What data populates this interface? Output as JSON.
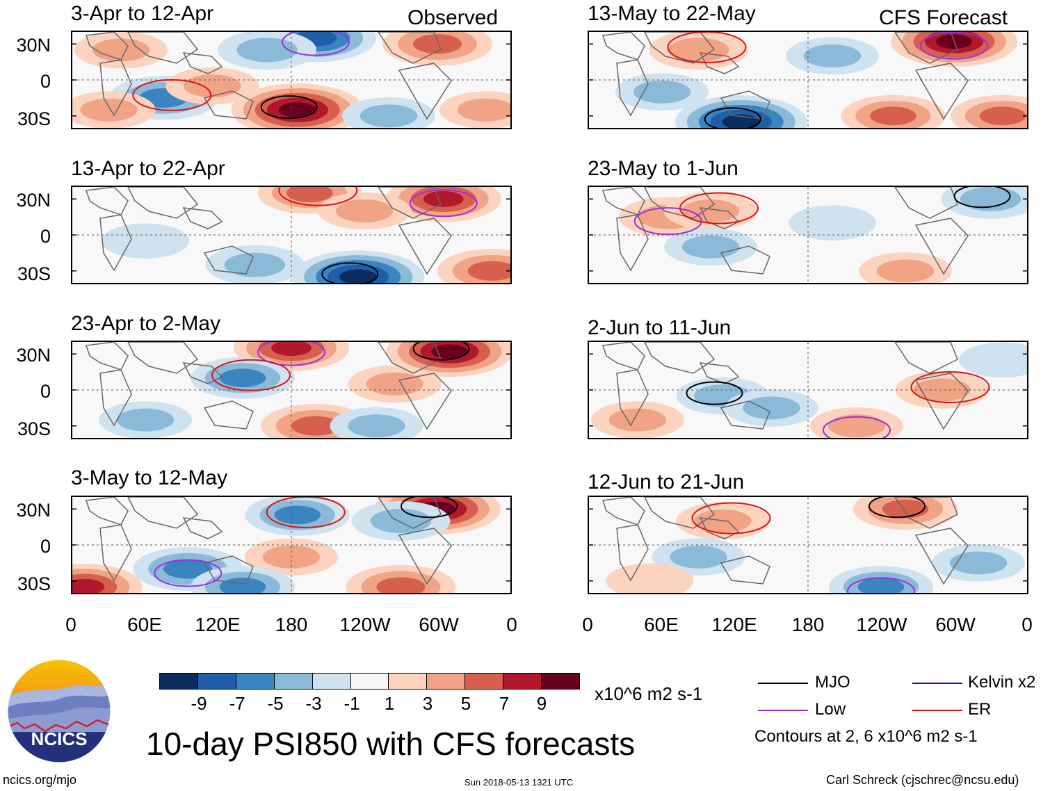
{
  "figure_title": "10-day PSI850 with CFS forecasts",
  "left_column_label": "Observed",
  "right_column_label": "CFS Forecast",
  "logo_text": "NCICS",
  "footer": {
    "left": "ncics.org/mjo",
    "center": "Sun 2018-05-13 1321 UTC",
    "right": "Carl Schreck (cjschrec@ncsu.edu)"
  },
  "colorbar": {
    "unit_label": "x10^6 m2 s-1",
    "tick_labels": [
      "-9",
      "-7",
      "-5",
      "-3",
      "-1",
      "1",
      "3",
      "5",
      "7",
      "9"
    ],
    "colors": [
      "#0b2c5e",
      "#1f5ea8",
      "#3a85c0",
      "#8bbad9",
      "#cfe2f0",
      "#f7f7f7",
      "#fbd3bf",
      "#f1a385",
      "#d6604d",
      "#b2182b",
      "#67001f"
    ]
  },
  "legend": {
    "items": [
      {
        "label": "MJO",
        "color": "#000000"
      },
      {
        "label": "Kelvin x2",
        "color": "#1010d0"
      },
      {
        "label": "Low",
        "color": "#9a30e0"
      },
      {
        "label": "ER",
        "color": "#e01010"
      }
    ],
    "note": "Contours at 2, 6 x10^6 m2 s-1"
  },
  "chart_data": {
    "type": "heatmap",
    "variable": "10-day PSI850 anomaly",
    "units": "x10^6 m2 s-1",
    "y_ticks": [
      "30N",
      "0",
      "30S"
    ],
    "x_ticks": [
      "0",
      "60E",
      "120E",
      "180",
      "120W",
      "60W",
      "0"
    ],
    "x_range_deg": [
      0,
      360
    ],
    "y_range_deg": [
      -40,
      40
    ],
    "contour_levels": [
      2,
      6
    ],
    "panels": [
      {
        "period": "3-Apr to 12-Apr",
        "source": "Observed",
        "blobs": [
          {
            "lon": 185,
            "lat": -25,
            "v": 10
          },
          {
            "lon": 200,
            "lat": 35,
            "v": -8
          },
          {
            "lon": 75,
            "lat": -15,
            "v": -6
          },
          {
            "lon": 115,
            "lat": -5,
            "v": 3
          },
          {
            "lon": 300,
            "lat": 30,
            "v": 6
          },
          {
            "lon": 160,
            "lat": 25,
            "v": -4
          },
          {
            "lon": 30,
            "lat": -25,
            "v": 3
          },
          {
            "lon": 260,
            "lat": -30,
            "v": -3
          },
          {
            "lon": 340,
            "lat": -25,
            "v": 3
          },
          {
            "lon": 40,
            "lat": 25,
            "v": 3
          }
        ]
      },
      {
        "period": "13-Apr to 22-Apr",
        "source": "Observed",
        "blobs": [
          {
            "lon": 235,
            "lat": -35,
            "v": -10
          },
          {
            "lon": 305,
            "lat": 30,
            "v": 7
          },
          {
            "lon": 195,
            "lat": 35,
            "v": 5
          },
          {
            "lon": 150,
            "lat": -25,
            "v": -4
          },
          {
            "lon": 345,
            "lat": -30,
            "v": 6
          },
          {
            "lon": 60,
            "lat": -5,
            "v": -2
          },
          {
            "lon": 240,
            "lat": 20,
            "v": 3
          }
        ]
      },
      {
        "period": "23-Apr to 2-May",
        "source": "Observed",
        "blobs": [
          {
            "lon": 310,
            "lat": 32,
            "v": 9
          },
          {
            "lon": 180,
            "lat": 35,
            "v": 7
          },
          {
            "lon": 140,
            "lat": 10,
            "v": -5
          },
          {
            "lon": 200,
            "lat": -30,
            "v": 6
          },
          {
            "lon": 250,
            "lat": -30,
            "v": -3
          },
          {
            "lon": 60,
            "lat": -25,
            "v": -3
          },
          {
            "lon": 265,
            "lat": 5,
            "v": 3
          }
        ]
      },
      {
        "period": "3-May to 12-May",
        "source": "Observed",
        "blobs": [
          {
            "lon": 300,
            "lat": 30,
            "v": 9
          },
          {
            "lon": 95,
            "lat": -20,
            "v": -6
          },
          {
            "lon": 185,
            "lat": 25,
            "v": -5
          },
          {
            "lon": 270,
            "lat": 20,
            "v": -4
          },
          {
            "lon": 10,
            "lat": -35,
            "v": 7
          },
          {
            "lon": 180,
            "lat": -10,
            "v": 3
          },
          {
            "lon": 270,
            "lat": -35,
            "v": 6
          },
          {
            "lon": 140,
            "lat": -35,
            "v": -5
          }
        ]
      },
      {
        "period": "13-May to 22-May",
        "source": "CFS Forecast",
        "blobs": [
          {
            "lon": 125,
            "lat": -35,
            "v": -10
          },
          {
            "lon": 300,
            "lat": 32,
            "v": 9
          },
          {
            "lon": 90,
            "lat": 25,
            "v": 4
          },
          {
            "lon": 250,
            "lat": -30,
            "v": 5
          },
          {
            "lon": 340,
            "lat": -30,
            "v": 5
          },
          {
            "lon": 200,
            "lat": 20,
            "v": -3
          },
          {
            "lon": 60,
            "lat": -10,
            "v": -3
          }
        ]
      },
      {
        "period": "23-May to 1-Jun",
        "source": "CFS Forecast",
        "blobs": [
          {
            "lon": 330,
            "lat": 30,
            "v": -4
          },
          {
            "lon": 65,
            "lat": 15,
            "v": 4
          },
          {
            "lon": 100,
            "lat": 20,
            "v": 3
          },
          {
            "lon": 260,
            "lat": -30,
            "v": 3
          },
          {
            "lon": 100,
            "lat": -10,
            "v": -3
          },
          {
            "lon": 200,
            "lat": 10,
            "v": -2
          }
        ]
      },
      {
        "period": "2-Jun to 11-Jun",
        "source": "CFS Forecast",
        "blobs": [
          {
            "lon": 110,
            "lat": -5,
            "v": -3
          },
          {
            "lon": 220,
            "lat": -30,
            "v": 3
          },
          {
            "lon": 290,
            "lat": 0,
            "v": 3
          },
          {
            "lon": 40,
            "lat": -25,
            "v": 3
          },
          {
            "lon": 150,
            "lat": -15,
            "v": -3
          },
          {
            "lon": 340,
            "lat": 25,
            "v": -2
          }
        ]
      },
      {
        "period": "12-Jun to 21-Jun",
        "source": "CFS Forecast",
        "blobs": [
          {
            "lon": 260,
            "lat": 30,
            "v": 5
          },
          {
            "lon": 240,
            "lat": -35,
            "v": -5
          },
          {
            "lon": 110,
            "lat": 20,
            "v": 3
          },
          {
            "lon": 90,
            "lat": -10,
            "v": -3
          },
          {
            "lon": 320,
            "lat": -15,
            "v": -3
          },
          {
            "lon": 50,
            "lat": -30,
            "v": 2
          }
        ]
      }
    ]
  }
}
